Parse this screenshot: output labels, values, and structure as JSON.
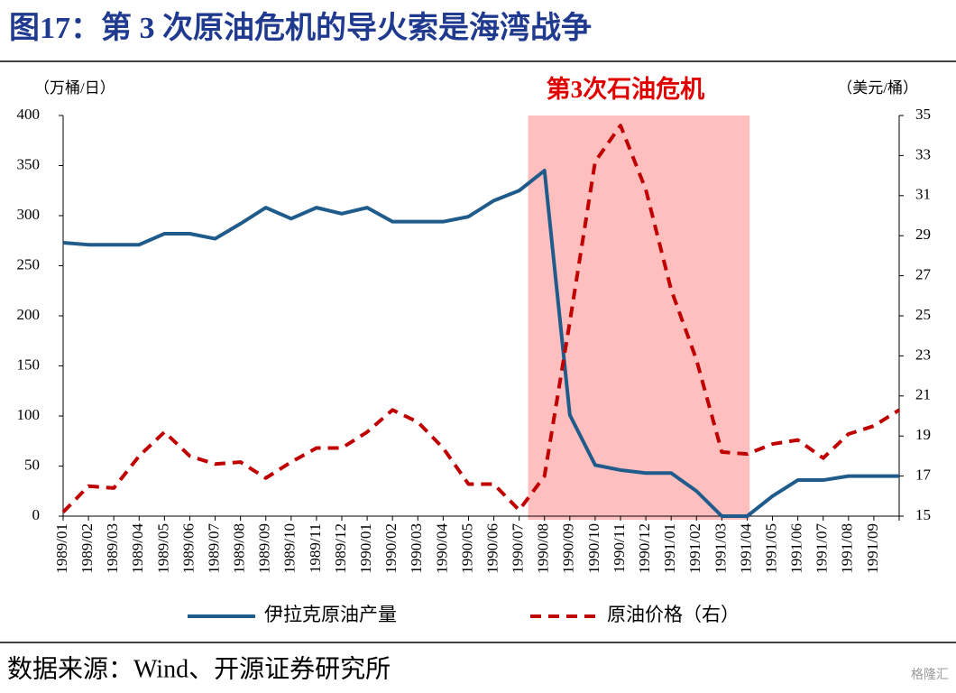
{
  "title": "图17：第 3 次原油危机的导火索是海湾战争",
  "source": "数据来源：Wind、开源证券研究所",
  "watermark": "格隆汇",
  "chart_data": {
    "type": "line",
    "annotation": "第3次石油危机",
    "shade": {
      "from": "1990/08",
      "to": "1991/04",
      "color": "#ffbfbf"
    },
    "y_label": "（万桶/日）",
    "y2_label": "（美元/桶）",
    "categories": [
      "1989/01",
      "1989/02",
      "1989/03",
      "1989/04",
      "1989/05",
      "1989/06",
      "1989/07",
      "1989/08",
      "1989/09",
      "1989/10",
      "1989/11",
      "1989/12",
      "1990/01",
      "1990/02",
      "1990/03",
      "1990/04",
      "1990/05",
      "1990/06",
      "1990/07",
      "1990/08",
      "1990/09",
      "1990/10",
      "1990/11",
      "1990/12",
      "1991/01",
      "1991/02",
      "1991/03",
      "1991/04",
      "1991/05",
      "1991/06",
      "1991/07",
      "1991/08",
      "1991/09",
      null
    ],
    "series": [
      {
        "name": "伊拉克原油产量",
        "color": "#1f5c8b",
        "style": "solid",
        "values": [
          273,
          271,
          271,
          271,
          282,
          282,
          277,
          292,
          308,
          297,
          308,
          302,
          308,
          294,
          294,
          294,
          299,
          315,
          325,
          345,
          101,
          51,
          46,
          43,
          43,
          25,
          0,
          0,
          20,
          36,
          36,
          40,
          40,
          40
        ]
      },
      {
        "name": "原油价格（右）",
        "color": "#c00000",
        "style": "dashed",
        "axis": "y2",
        "values": [
          15.2,
          16.5,
          16.4,
          18.0,
          19.2,
          18.0,
          17.6,
          17.7,
          16.9,
          17.7,
          18.4,
          18.4,
          19.2,
          20.3,
          19.7,
          18.4,
          16.6,
          16.6,
          15.3,
          17.0,
          24.7,
          32.7,
          34.5,
          31.3,
          26.3,
          22.8,
          18.2,
          18.1,
          18.6,
          18.8,
          17.9,
          19.1,
          19.5,
          20.3
        ]
      }
    ],
    "ylim": [
      0,
      400
    ],
    "yticks": [
      0,
      50,
      100,
      150,
      200,
      250,
      300,
      350,
      400
    ],
    "y2lim": [
      15,
      35
    ],
    "y2ticks": [
      15,
      17,
      19,
      21,
      23,
      25,
      27,
      29,
      31,
      33,
      35
    ],
    "legend": "bottom"
  }
}
